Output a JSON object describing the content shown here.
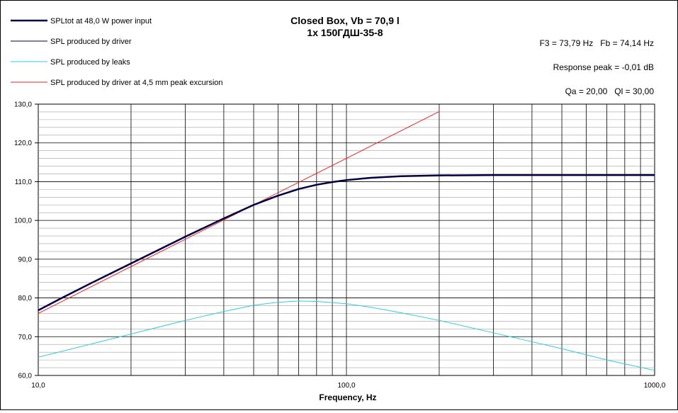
{
  "chart_data": {
    "type": "line",
    "title": "Closed Box, Vb = 70,9 l",
    "subtitle": "1x 150ГДШ-35-8",
    "xlabel": "Frequency, Hz",
    "ylabel": "",
    "x_scale": "log",
    "xlim": [
      10,
      1000
    ],
    "ylim": [
      60,
      130
    ],
    "grid": true,
    "legend_position": "top-left",
    "x_tick_labels": [
      "10,0",
      "100,0",
      "1000,0"
    ],
    "y_tick_labels": [
      "60,0",
      "70,0",
      "80,0",
      "90,0",
      "100,0",
      "110,0",
      "120,0",
      "130,0"
    ],
    "info": {
      "f3_fb": "F3 = 73,79 Hz   Fb = 74,14 Hz",
      "response_peak": "Response peak = -0,01 dB",
      "qa_ql": "Qa = 20,00   Ql = 30,00"
    },
    "series": [
      {
        "name": "SPLtot at 48,0 W power input",
        "color": "#000040",
        "x": [
          10,
          12,
          15,
          20,
          25,
          30,
          40,
          50,
          60,
          70,
          80,
          90,
          100,
          120,
          150,
          200,
          300,
          500,
          700,
          1000
        ],
        "y": [
          76.8,
          80.1,
          84.0,
          88.9,
          92.7,
          95.8,
          100.5,
          104.0,
          106.4,
          108.1,
          109.2,
          109.9,
          110.4,
          111.0,
          111.4,
          111.6,
          111.7,
          111.7,
          111.7,
          111.7
        ]
      },
      {
        "name": "SPL produced by driver",
        "color": "#000040",
        "x": [
          10,
          12,
          15,
          20,
          25,
          30,
          40,
          50,
          60,
          70,
          80,
          90,
          100,
          120,
          150,
          200,
          300,
          500,
          700,
          1000
        ],
        "y": [
          76.8,
          80.1,
          84.0,
          88.9,
          92.7,
          95.8,
          100.5,
          104.0,
          106.4,
          108.1,
          109.2,
          109.9,
          110.4,
          111.0,
          111.4,
          111.6,
          111.7,
          111.7,
          111.7,
          111.7
        ]
      },
      {
        "name": "SPL produced by leaks",
        "color": "#33ccdd",
        "x": [
          10,
          15,
          20,
          30,
          40,
          50,
          60,
          70,
          80,
          100,
          120,
          150,
          200,
          300,
          500,
          700,
          1000
        ],
        "y": [
          64.7,
          68.2,
          70.7,
          74.2,
          76.5,
          78.1,
          78.9,
          79.2,
          79.1,
          78.5,
          77.6,
          76.2,
          74.2,
          71.0,
          66.9,
          64.0,
          61.3
        ]
      },
      {
        "name": "SPL produced by driver at 4,5 mm peak excursion",
        "color": "#ee2222",
        "x": [
          10,
          20,
          50,
          100,
          200
        ],
        "y": [
          76.0,
          88.1,
          104.0,
          116.0,
          128.1
        ]
      }
    ]
  }
}
